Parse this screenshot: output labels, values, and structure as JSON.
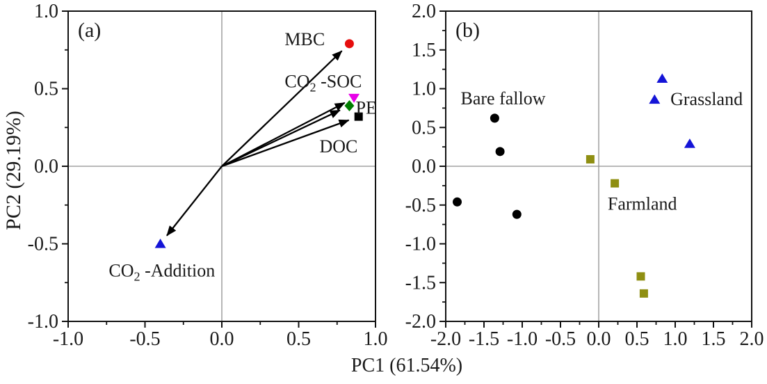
{
  "figure": {
    "xlabel": "PC1 (61.54%)",
    "ylabel": "PC2 (29.19%)",
    "background": "#ffffff"
  },
  "colors": {
    "frame": "#111111",
    "crosshair": "#8f8f8f",
    "text": "#1a1a1a",
    "red": "#e60d0d",
    "magenta": "#e800e8",
    "green": "#007d00",
    "blue": "#1414d7",
    "dark_yellow": "#8f8f12",
    "black": "#000000"
  },
  "chart_data": [
    {
      "panel": "a",
      "tag": "(a)",
      "type": "scatter",
      "subtype": "pca-loadings-with-arrows",
      "xlabel": "PC1 (61.54%)",
      "ylabel": "PC2 (29.19%)",
      "xlim": [
        -1.0,
        1.0
      ],
      "ylim": [
        -1.0,
        1.0
      ],
      "xtick_labels": [
        "-1.0",
        "-0.5",
        "0.0",
        "0.5",
        "1.0"
      ],
      "ytick_labels": [
        "-1.0",
        "-0.5",
        "0.0",
        "0.5",
        "1.0"
      ],
      "minor_tick_step": 0.25,
      "crosshair_at_zero": true,
      "grid": false,
      "vectors_from_origin": true,
      "vectors": [
        {
          "label": "MBC",
          "x": 0.83,
          "y": 0.79,
          "marker": "circle",
          "color": "#e60d0d",
          "label_x": 0.54,
          "label_y": 0.82
        },
        {
          "label": "CO₂ -SOC",
          "x": 0.86,
          "y": 0.44,
          "marker": "triangle-down",
          "color": "#e800e8",
          "label_x": 0.66,
          "label_y": 0.55
        },
        {
          "label": "PE",
          "x": 0.83,
          "y": 0.39,
          "marker": "diamond",
          "color": "#007d00",
          "label_x": 0.94,
          "label_y": 0.38
        },
        {
          "label": "DOC",
          "x": 0.89,
          "y": 0.32,
          "marker": "square",
          "color": "#000000",
          "label_x": 0.76,
          "label_y": 0.13
        },
        {
          "label": "CO₂ -Addition",
          "x": -0.4,
          "y": -0.5,
          "marker": "triangle-up",
          "color": "#1414d7",
          "label_x": -0.39,
          "label_y": -0.67
        }
      ]
    },
    {
      "panel": "b",
      "tag": "(b)",
      "type": "scatter",
      "subtype": "pca-scores",
      "xlabel": "PC1 (61.54%)",
      "ylabel": "PC2 (29.19%)",
      "xlim": [
        -2.0,
        2.0
      ],
      "ylim": [
        -2.0,
        2.0
      ],
      "xtick_labels": [
        "-2.0",
        "-1.5",
        "-1.0",
        "-0.5",
        "0.0",
        "0.5",
        "1.0",
        "1.5",
        "2.0"
      ],
      "ytick_labels": [
        "-2.0",
        "-1.5",
        "-1.0",
        "-0.5",
        "0.0",
        "0.5",
        "1.0",
        "1.5",
        "2.0"
      ],
      "minor_tick_step": 0.25,
      "crosshair_at_zero": true,
      "grid": false,
      "series": [
        {
          "name": "Bare fallow",
          "marker": "circle",
          "color": "#000000",
          "label_x": -1.25,
          "label_y": 0.88,
          "points": [
            [
              -1.36,
              0.62
            ],
            [
              -1.29,
              0.19
            ],
            [
              -1.85,
              -0.46
            ],
            [
              -1.07,
              -0.62
            ]
          ]
        },
        {
          "name": "Grassland",
          "marker": "triangle-up",
          "color": "#1414d7",
          "label_x": 1.41,
          "label_y": 0.87,
          "points": [
            [
              0.83,
              1.13
            ],
            [
              0.73,
              0.86
            ],
            [
              1.19,
              0.29
            ]
          ]
        },
        {
          "name": "Farmland",
          "marker": "square",
          "color": "#8f8f12",
          "label_x": 0.57,
          "label_y": -0.48,
          "points": [
            [
              -0.11,
              0.09
            ],
            [
              0.21,
              -0.22
            ],
            [
              0.55,
              -1.42
            ],
            [
              0.59,
              -1.64
            ]
          ]
        }
      ]
    }
  ]
}
